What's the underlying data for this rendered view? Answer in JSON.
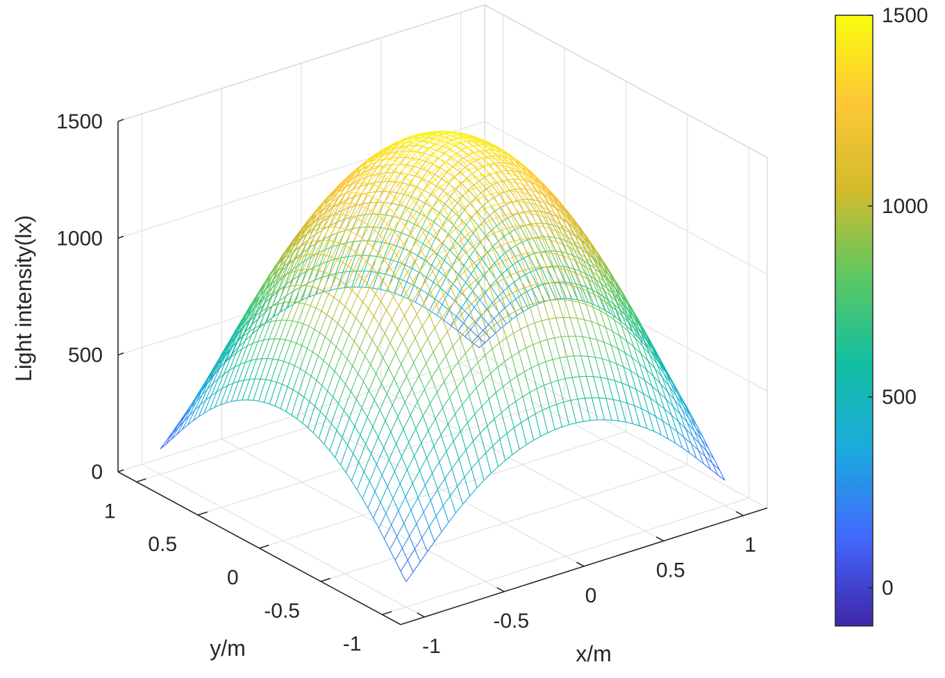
{
  "chart_data": {
    "type": "surface",
    "title": "",
    "xlabel": "x/m",
    "ylabel": "y/m",
    "zlabel": "Light intensity(lx)",
    "x_range": [
      -1.15,
      1.15
    ],
    "y_range": [
      -1.15,
      1.15
    ],
    "z_range": [
      0,
      1500
    ],
    "x_ticks": [
      "-1",
      "-0.5",
      "0",
      "0.5",
      "1"
    ],
    "y_ticks": [
      "-1",
      "-0.5",
      "0",
      "0.5",
      "1"
    ],
    "z_ticks": [
      "0",
      "500",
      "1000",
      "1500"
    ],
    "grid": true,
    "mesh_points_per_side": 46,
    "surface": {
      "description": "illuminance distribution, peak at center",
      "peak_value": 1500,
      "edge_midpoint_value_min": 550,
      "edge_midpoint_value_max": 650,
      "corner_value": 0
    },
    "colorbar": {
      "location": "right",
      "range": [
        -100,
        1500
      ],
      "ticks": [
        "0",
        "500",
        "1000",
        "1500"
      ],
      "colormap": [
        "#3e26a8",
        "#4367fd",
        "#1caadf",
        "#12bea2",
        "#5cc863",
        "#d3bb2b",
        "#fec735",
        "#f9fb0e"
      ]
    }
  }
}
